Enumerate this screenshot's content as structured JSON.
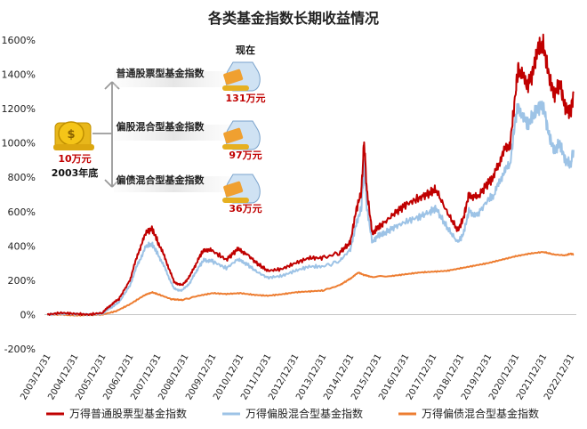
{
  "chart_data": {
    "type": "line",
    "title": "各类基金指数长期收益情况",
    "xlabel": "",
    "ylabel": "",
    "ylim": [
      -200,
      1600
    ],
    "y_ticks": [
      "-200%",
      "0%",
      "200%",
      "400%",
      "600%",
      "800%",
      "1000%",
      "1200%",
      "1400%",
      "1600%"
    ],
    "y_tick_values": [
      -200,
      0,
      200,
      400,
      600,
      800,
      1000,
      1200,
      1400,
      1600
    ],
    "x_ticks": [
      "2003/12/31",
      "2004/12/31",
      "2005/12/31",
      "2006/12/31",
      "2007/12/31",
      "2008/12/31",
      "2009/12/31",
      "2010/12/31",
      "2011/12/31",
      "2012/12/31",
      "2013/12/31",
      "2014/12/31",
      "2015/12/31",
      "2016/12/31",
      "2017/12/31",
      "2018/12/31",
      "2019/12/31",
      "2020/12/31",
      "2021/12/31",
      "2022/12/31"
    ],
    "x_tick_values": [
      2004.0,
      2005.0,
      2006.0,
      2007.0,
      2008.0,
      2009.0,
      2010.0,
      2011.0,
      2012.0,
      2013.0,
      2014.0,
      2015.0,
      2016.0,
      2017.0,
      2018.0,
      2019.0,
      2020.0,
      2021.0,
      2022.0,
      2023.0
    ],
    "xlim": [
      2003.9,
      2023.2
    ],
    "grid": false,
    "legend_position": "bottom",
    "series": [
      {
        "name": "万得普通股票型基金指数",
        "color": "#c00000",
        "x": [
          2004.0,
          2004.5,
          2005.0,
          2005.5,
          2006.0,
          2006.3,
          2006.6,
          2007.0,
          2007.3,
          2007.6,
          2007.8,
          2008.0,
          2008.3,
          2008.6,
          2008.9,
          2009.2,
          2009.5,
          2009.7,
          2010.0,
          2010.5,
          2010.9,
          2011.2,
          2011.6,
          2012.0,
          2012.5,
          2013.0,
          2013.5,
          2014.0,
          2014.6,
          2015.0,
          2015.2,
          2015.4,
          2015.5,
          2015.6,
          2015.8,
          2016.0,
          2016.2,
          2016.6,
          2017.0,
          2017.5,
          2017.9,
          2018.1,
          2018.5,
          2018.9,
          2019.1,
          2019.3,
          2019.6,
          2020.0,
          2020.2,
          2020.5,
          2020.8,
          2021.0,
          2021.1,
          2021.4,
          2021.6,
          2021.8,
          2022.0,
          2022.2,
          2022.4,
          2022.6,
          2022.8,
          2023.0,
          2023.1
        ],
        "values": [
          0,
          10,
          5,
          0,
          10,
          55,
          90,
          200,
          360,
          480,
          500,
          430,
          320,
          190,
          170,
          230,
          330,
          380,
          370,
          320,
          380,
          360,
          300,
          255,
          265,
          300,
          330,
          330,
          360,
          420,
          600,
          720,
          1010,
          720,
          470,
          510,
          530,
          590,
          640,
          680,
          710,
          730,
          600,
          490,
          560,
          700,
          680,
          770,
          800,
          930,
          1000,
          1300,
          1450,
          1330,
          1400,
          1550,
          1570,
          1400,
          1280,
          1350,
          1200,
          1180,
          1300
        ]
      },
      {
        "name": "万得偏股混合型基金指数",
        "color": "#9dc3e6",
        "x": [
          2004.0,
          2004.5,
          2005.0,
          2005.5,
          2006.0,
          2006.3,
          2006.6,
          2007.0,
          2007.3,
          2007.6,
          2007.8,
          2008.0,
          2008.3,
          2008.6,
          2008.9,
          2009.2,
          2009.5,
          2009.7,
          2010.0,
          2010.5,
          2010.9,
          2011.2,
          2011.6,
          2012.0,
          2012.5,
          2013.0,
          2013.5,
          2014.0,
          2014.6,
          2015.0,
          2015.2,
          2015.4,
          2015.5,
          2015.6,
          2015.8,
          2016.0,
          2016.2,
          2016.6,
          2017.0,
          2017.5,
          2017.9,
          2018.1,
          2018.5,
          2018.9,
          2019.1,
          2019.3,
          2019.6,
          2020.0,
          2020.2,
          2020.5,
          2020.8,
          2021.0,
          2021.1,
          2021.4,
          2021.6,
          2021.8,
          2022.0,
          2022.2,
          2022.4,
          2022.6,
          2022.8,
          2023.0,
          2023.1
        ],
        "values": [
          0,
          5,
          3,
          0,
          5,
          40,
          70,
          170,
          300,
          400,
          410,
          360,
          260,
          150,
          140,
          190,
          280,
          320,
          310,
          270,
          320,
          300,
          250,
          215,
          225,
          255,
          280,
          280,
          310,
          380,
          520,
          620,
          870,
          620,
          420,
          460,
          470,
          510,
          540,
          570,
          600,
          620,
          510,
          420,
          470,
          600,
          580,
          670,
          690,
          810,
          880,
          1150,
          1220,
          1100,
          1150,
          1200,
          1220,
          1050,
          950,
          1000,
          900,
          880,
          960
        ]
      },
      {
        "name": "万得偏债混合型基金指数",
        "color": "#ed7d31",
        "x": [
          2004.0,
          2004.5,
          2005.0,
          2005.5,
          2006.0,
          2006.5,
          2007.0,
          2007.5,
          2007.8,
          2008.0,
          2008.5,
          2008.9,
          2009.5,
          2010.0,
          2010.5,
          2011.0,
          2011.5,
          2012.0,
          2012.5,
          2013.0,
          2013.5,
          2014.0,
          2014.6,
          2015.0,
          2015.3,
          2015.5,
          2015.8,
          2016.5,
          2017.0,
          2017.5,
          2018.0,
          2018.5,
          2019.0,
          2019.5,
          2020.0,
          2020.5,
          2021.0,
          2021.5,
          2022.0,
          2022.4,
          2022.8,
          2023.0,
          2023.1
        ],
        "values": [
          0,
          0,
          -5,
          -3,
          0,
          20,
          60,
          110,
          130,
          120,
          90,
          85,
          110,
          125,
          120,
          125,
          115,
          110,
          118,
          130,
          135,
          140,
          170,
          210,
          245,
          230,
          220,
          225,
          235,
          245,
          250,
          255,
          270,
          285,
          300,
          320,
          340,
          355,
          365,
          350,
          345,
          355,
          350
        ]
      }
    ],
    "annotations": {
      "now_label": "现在",
      "start_amount": "10万元",
      "start_date": "2003年底",
      "arrow1_label": "普通股票型基金指数",
      "arrow1_value": "131万元",
      "arrow2_label": "偏股混合型基金指数",
      "arrow2_value": "97万元",
      "arrow3_label": "偏债混合型基金指数",
      "arrow3_value": "36万元"
    }
  }
}
